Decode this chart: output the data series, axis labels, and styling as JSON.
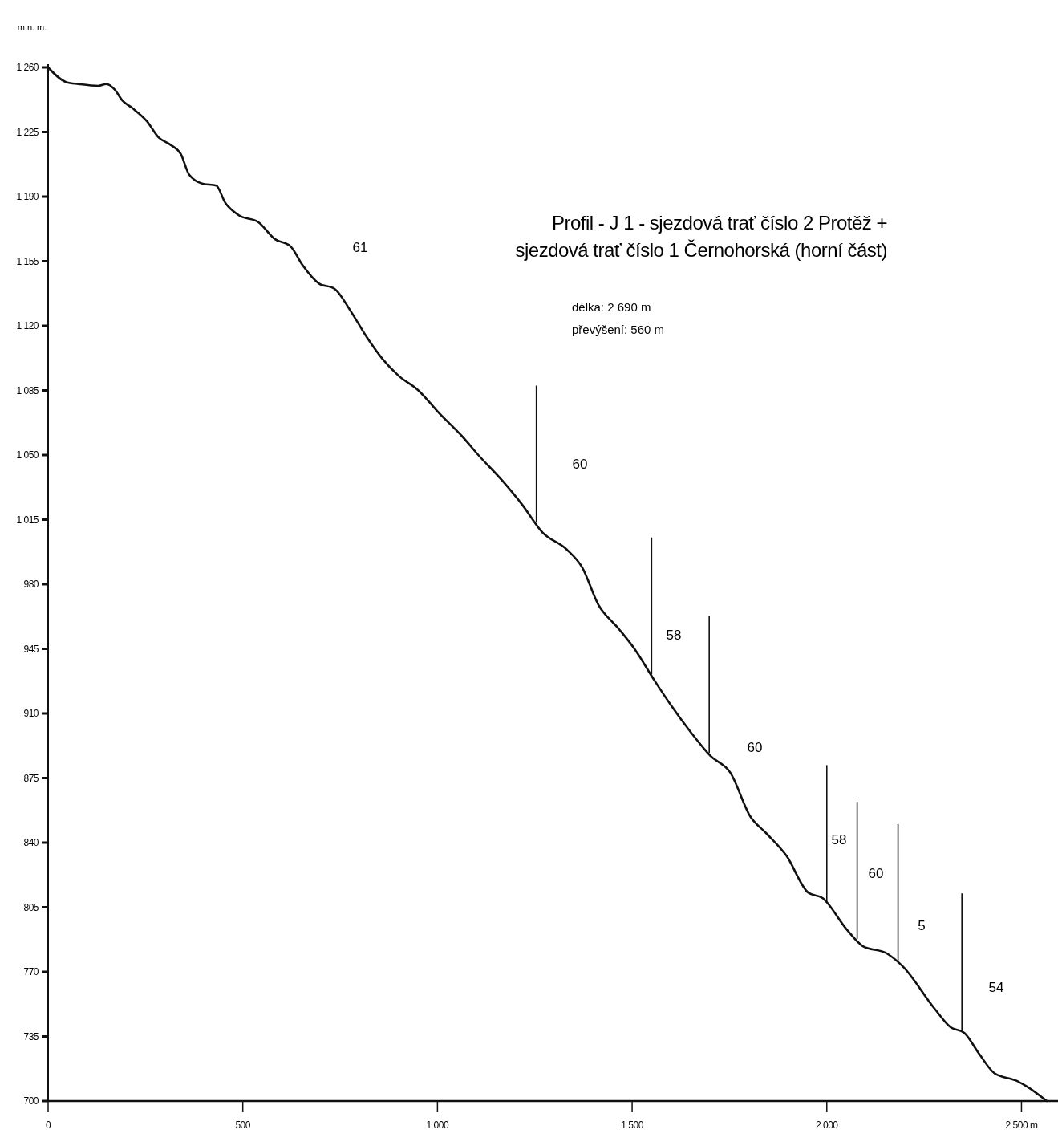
{
  "chart_data": {
    "type": "line",
    "title": "Profil - J 1 - sjezdová trať číslo 2 Protěž + sjezdová trať číslo 1 Černohorská (horní část)",
    "ylabel": "m n. m.",
    "x": [
      0,
      47,
      78,
      129,
      150,
      171,
      191,
      216,
      253,
      284,
      315,
      341,
      362,
      397,
      432,
      454,
      489,
      541,
      582,
      623,
      653,
      695,
      736,
      777,
      818,
      859,
      900,
      951,
      1003,
      1064,
      1105,
      1167,
      1218,
      1270,
      1331,
      1372,
      1413,
      1465,
      1506,
      1557,
      1598,
      1650,
      1701,
      1752,
      1804,
      1845,
      1896,
      1952,
      1989,
      2051,
      2092,
      2154,
      2195,
      2277,
      2318,
      2353,
      2390,
      2431,
      2487,
      2513,
      2565
    ],
    "series": [
      {
        "color": "#111111",
        "values": [
          1260,
          1252,
          1251,
          1250,
          1251,
          1248,
          1242,
          1238,
          1231,
          1222,
          1218,
          1213,
          1202,
          1197,
          1196,
          1187,
          1180,
          1176,
          1167,
          1163,
          1153,
          1143,
          1140,
          1128,
          1114,
          1102,
          1093,
          1085,
          1073,
          1060,
          1050,
          1036,
          1023,
          1008,
          999,
          989,
          969,
          956,
          945,
          928,
          915,
          900,
          887,
          878,
          854,
          845,
          833,
          813,
          810,
          793,
          784,
          780,
          773,
          750,
          740,
          737,
          726,
          715,
          711,
          708,
          700
        ]
      }
    ],
    "xlim": [
      0,
      2600
    ],
    "ylim": [
      700,
      1260
    ],
    "xticks": [
      0,
      500,
      {
        "value": 1000,
        "label": "1 000"
      },
      {
        "value": 1500,
        "label": "1 500"
      },
      {
        "value": 2000,
        "label": "2 000"
      },
      {
        "value": 2500,
        "label": "2 500 m"
      }
    ],
    "yticks": [
      700,
      735,
      770,
      805,
      840,
      875,
      910,
      945,
      980,
      {
        "value": 1015,
        "label": "1 015"
      },
      {
        "value": 1050,
        "label": "1 050"
      },
      {
        "value": 1085,
        "label": "1 085"
      },
      {
        "value": 1120,
        "label": "1 120"
      },
      {
        "value": 1155,
        "label": "1 155"
      },
      {
        "value": 1190,
        "label": "1 190"
      },
      {
        "value": 1225,
        "label": "1 225"
      },
      {
        "value": 1260,
        "label": "1 260"
      }
    ],
    "grid": false,
    "marker": "none",
    "line_style": "solid",
    "ref_lines": [
      {
        "axis": "x",
        "value": 1254
      },
      {
        "axis": "x",
        "value": 1550
      },
      {
        "axis": "x",
        "value": 1698
      },
      {
        "axis": "x",
        "value": 2000
      },
      {
        "axis": "x",
        "value": 2078
      },
      {
        "axis": "x",
        "value": 2183
      },
      {
        "axis": "x",
        "value": 2347
      }
    ],
    "annotations": [
      "délka: 2 690 m",
      "převýšení: 560 m",
      "61",
      "60",
      "58",
      "60",
      "58",
      "60",
      "5",
      "54"
    ]
  }
}
